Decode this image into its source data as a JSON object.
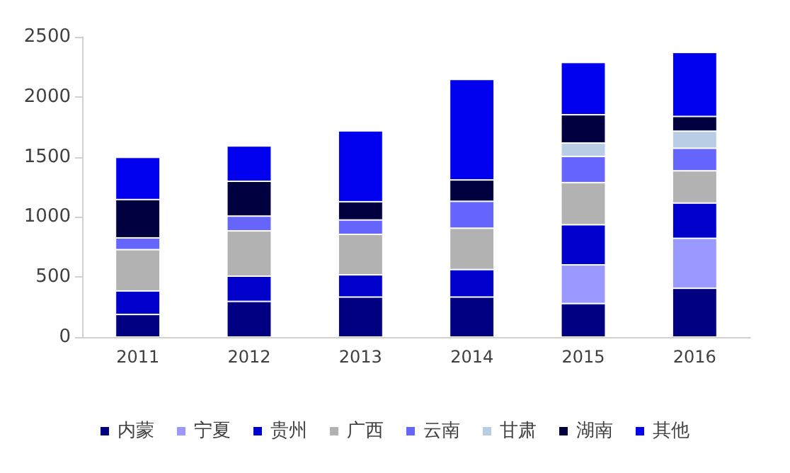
{
  "chart_data": {
    "type": "bar",
    "stacked": true,
    "categories": [
      "2011",
      "2012",
      "2013",
      "2014",
      "2015",
      "2016"
    ],
    "series": [
      {
        "name": "内蒙",
        "color": "#000080",
        "values": [
          188,
          297,
          333,
          333,
          279,
          406
        ]
      },
      {
        "name": "宁夏",
        "color": "#9999ff",
        "values": [
          null,
          null,
          null,
          null,
          322,
          416
        ]
      },
      {
        "name": "贵州",
        "color": "#0000cc",
        "values": [
          196,
          210,
          185,
          229,
          334,
          294
        ]
      },
      {
        "name": "广西",
        "color": "#b2b2b2",
        "values": [
          344,
          377,
          337,
          344,
          351,
          268
        ]
      },
      {
        "name": "云南",
        "color": "#6666ff",
        "values": [
          98,
          123,
          120,
          224,
          218,
          188
        ]
      },
      {
        "name": "甘肃",
        "color": "#b9cde5",
        "values": [
          null,
          null,
          null,
          null,
          112,
          142
        ]
      },
      {
        "name": "湖南",
        "color": "#000040",
        "values": [
          319,
          290,
          152,
          178,
          235,
          123
        ]
      },
      {
        "name": "其他",
        "color": "#0000ee",
        "values": [
          351,
          294,
          590,
          837,
          435,
          533
        ]
      }
    ],
    "ylim": [
      0,
      2500
    ],
    "yticks": [
      0,
      500,
      1000,
      1500,
      2000,
      2500
    ],
    "grid": false,
    "legend": "bottom"
  }
}
